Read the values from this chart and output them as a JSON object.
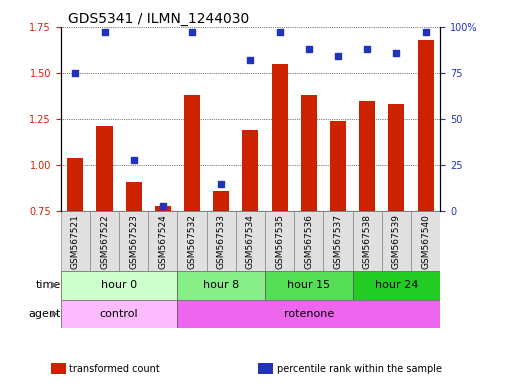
{
  "title": "GDS5341 / ILMN_1244030",
  "samples": [
    "GSM567521",
    "GSM567522",
    "GSM567523",
    "GSM567524",
    "GSM567532",
    "GSM567533",
    "GSM567534",
    "GSM567535",
    "GSM567536",
    "GSM567537",
    "GSM567538",
    "GSM567539",
    "GSM567540"
  ],
  "transformed_count": [
    1.04,
    1.21,
    0.91,
    0.78,
    1.38,
    0.86,
    1.19,
    1.55,
    1.38,
    1.24,
    1.35,
    1.33,
    1.68
  ],
  "percentile_rank": [
    75,
    97,
    28,
    3,
    97,
    15,
    82,
    97,
    88,
    84,
    88,
    86,
    97
  ],
  "ylim_left": [
    0.75,
    1.75
  ],
  "ylim_right": [
    0,
    100
  ],
  "yticks_left": [
    0.75,
    1.0,
    1.25,
    1.5,
    1.75
  ],
  "yticks_right": [
    0,
    25,
    50,
    75,
    100
  ],
  "bar_color": "#cc2200",
  "dot_color": "#2233bb",
  "time_groups": [
    {
      "label": "hour 0",
      "start": 0,
      "end": 4,
      "color": "#ccffcc"
    },
    {
      "label": "hour 8",
      "start": 4,
      "end": 7,
      "color": "#88ee88"
    },
    {
      "label": "hour 15",
      "start": 7,
      "end": 10,
      "color": "#55dd55"
    },
    {
      "label": "hour 24",
      "start": 10,
      "end": 13,
      "color": "#22cc22"
    }
  ],
  "agent_groups": [
    {
      "label": "control",
      "start": 0,
      "end": 4,
      "color": "#ffbbff"
    },
    {
      "label": "rotenone",
      "start": 4,
      "end": 13,
      "color": "#ee66ee"
    }
  ],
  "legend_items": [
    {
      "color": "#cc2200",
      "label": "transformed count"
    },
    {
      "color": "#2233bb",
      "label": "percentile rank within the sample"
    }
  ],
  "bar_width": 0.55,
  "title_fontsize": 10,
  "tick_fontsize": 7,
  "label_fontsize": 8,
  "sample_fontsize": 6.5,
  "legend_fontsize": 7,
  "background_color": "#ffffff"
}
